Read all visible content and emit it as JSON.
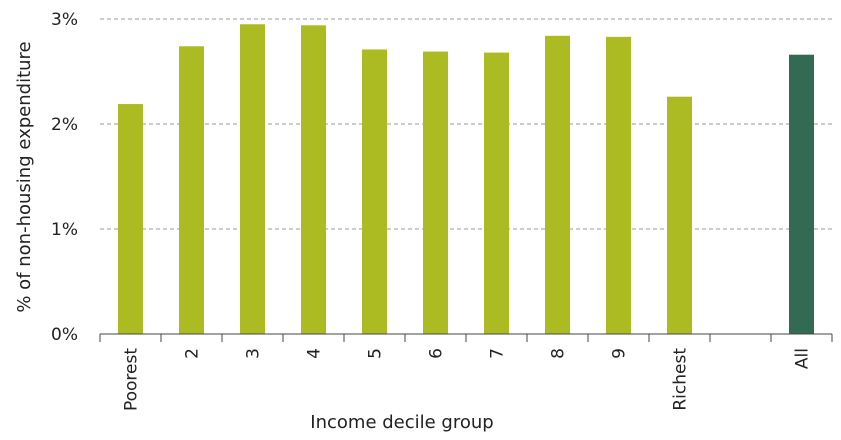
{
  "chart_data": {
    "type": "bar",
    "categories": [
      "Poorest",
      "2",
      "3",
      "4",
      "5",
      "6",
      "7",
      "8",
      "9",
      "Richest",
      "",
      "All"
    ],
    "values": [
      2.19,
      2.74,
      2.95,
      2.94,
      2.71,
      2.69,
      2.68,
      2.84,
      2.83,
      2.26,
      null,
      2.66
    ],
    "bar_colors": [
      "#acbb22",
      "#acbb22",
      "#acbb22",
      "#acbb22",
      "#acbb22",
      "#acbb22",
      "#acbb22",
      "#acbb22",
      "#acbb22",
      "#acbb22",
      "#acbb22",
      "#336a53"
    ],
    "xlabel": "Income decile group",
    "ylabel": "% of non-housing expenditure",
    "ylim": [
      0,
      3
    ],
    "yticks": [
      0,
      1,
      2,
      3
    ],
    "ytick_labels": [
      "0%",
      "1%",
      "2%",
      "3%"
    ],
    "grid": true,
    "legend": "none"
  }
}
